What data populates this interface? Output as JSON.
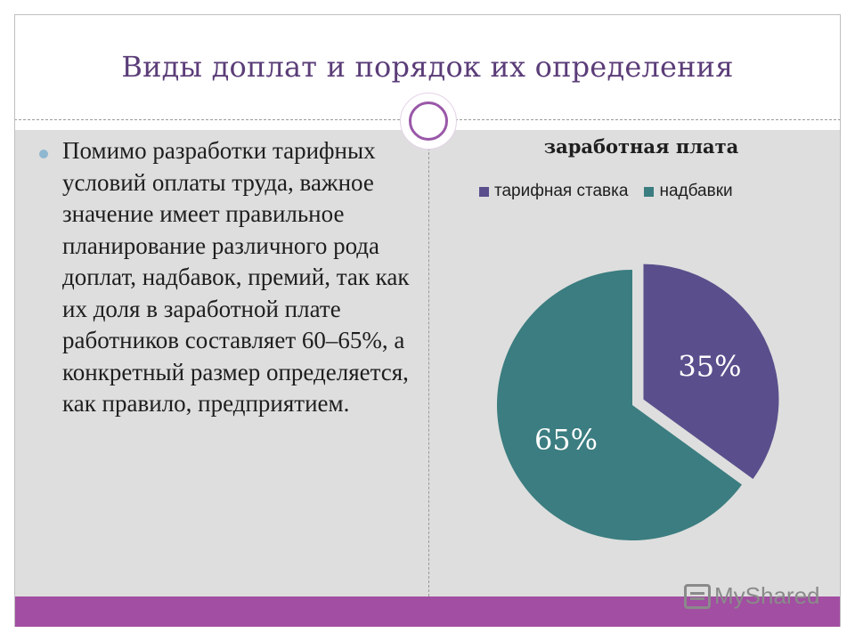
{
  "slide": {
    "title": "Виды доплат и порядок их определения",
    "body_text": "Помимо разработки тарифных условий оплаты труда, важное значение имеет правильное планирование различного рода доплат, надбавок, премий, так как их доля в заработной плате работников составляет 60–65%, а конкретный размер определяется, как правило, предприятием."
  },
  "watermark": {
    "text": "MyShared"
  },
  "colors": {
    "title": "#5b3d78",
    "accent_bar": "#a24ea2",
    "series_a": "#5a4f8c",
    "series_b": "#3b7d80"
  },
  "chart_data": {
    "type": "pie",
    "title": "заработная плата",
    "legend_position": "top",
    "categories": [
      "тарифная ставка",
      "надбавки"
    ],
    "values": [
      35,
      65
    ],
    "labels": [
      "35%",
      "65%"
    ],
    "colors": [
      "#5a4f8c",
      "#3b7d80"
    ],
    "exploded": [
      true,
      false
    ]
  }
}
